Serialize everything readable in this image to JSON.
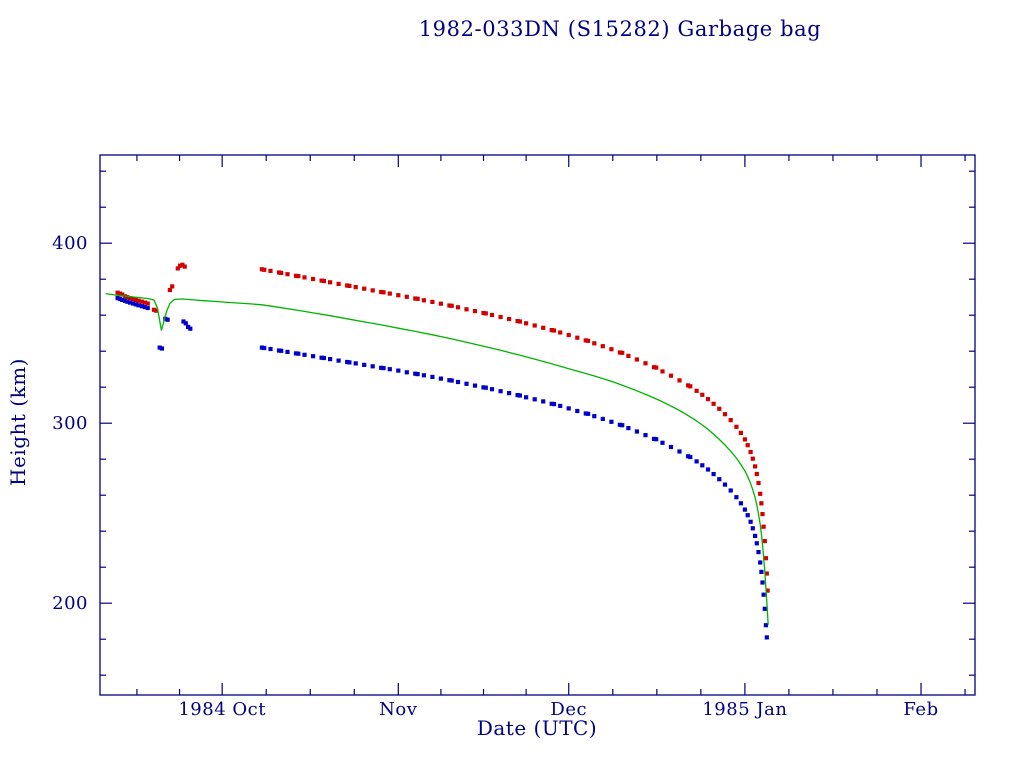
{
  "page": {
    "background": "#ffffff",
    "foreground": "#000080"
  },
  "chart_data": {
    "type": "scatter",
    "title": "1982-033DN (S15282) Garbage bag",
    "xlabel": "Date (UTC)",
    "ylabel": "Height (km)",
    "axis_color": "#000080",
    "grid": false,
    "legend": "none",
    "x_unit": "days since 1984-09-01 UTC",
    "xlim": [
      8.5,
      162.5
    ],
    "ylim": [
      149,
      449
    ],
    "x_ticks": [
      {
        "day": 30,
        "label": "1984 Oct"
      },
      {
        "day": 61,
        "label": "Nov"
      },
      {
        "day": 91,
        "label": "Dec"
      },
      {
        "day": 122,
        "label": "1985 Jan"
      },
      {
        "day": 153,
        "label": "Feb"
      }
    ],
    "x_minor_days": [
      15,
      22.5,
      37.75,
      45.5,
      53.25,
      68.5,
      76,
      83.5,
      98.75,
      106.5,
      114.25,
      129.75,
      137.5,
      145.25,
      160.75
    ],
    "y_ticks": [
      {
        "value": 200,
        "label": "200"
      },
      {
        "value": 300,
        "label": "300"
      },
      {
        "value": 400,
        "label": "400"
      }
    ],
    "y_minor_values": [
      160,
      180,
      220,
      240,
      260,
      280,
      320,
      340,
      360,
      380,
      420,
      440
    ],
    "series": [
      {
        "name": "apogee height",
        "type": "scatter",
        "marker": "square",
        "color": "#d40000",
        "points": [
          [
            11.6,
            372.5
          ],
          [
            12,
            372
          ],
          [
            12.4,
            371.5
          ],
          [
            12.9,
            370.5
          ],
          [
            13.3,
            370
          ],
          [
            13.8,
            369.5
          ],
          [
            14.3,
            369
          ],
          [
            14.8,
            368.5
          ],
          [
            15.3,
            368
          ],
          [
            15.9,
            367.5
          ],
          [
            16.4,
            367
          ],
          [
            16.9,
            366.5
          ],
          [
            18,
            363
          ],
          [
            18.4,
            362.5
          ],
          [
            20.8,
            374
          ],
          [
            21.2,
            376
          ],
          [
            22.2,
            386
          ],
          [
            22.6,
            387.5
          ],
          [
            23,
            388
          ],
          [
            23.4,
            387
          ],
          [
            37,
            385.5
          ],
          [
            37.4,
            385.2
          ],
          [
            38.5,
            384.6
          ],
          [
            40,
            383.7
          ],
          [
            40.4,
            383.5
          ],
          [
            41.5,
            382.8
          ],
          [
            43,
            381.9
          ],
          [
            43.4,
            381.7
          ],
          [
            44.5,
            381
          ],
          [
            46,
            380.1
          ],
          [
            47.5,
            379.2
          ],
          [
            47.9,
            379
          ],
          [
            49,
            378.3
          ],
          [
            50.5,
            377.4
          ],
          [
            52,
            376.5
          ],
          [
            52.4,
            376.3
          ],
          [
            53.5,
            375.6
          ],
          [
            55,
            374.7
          ],
          [
            56.5,
            373.8
          ],
          [
            58,
            372.9
          ],
          [
            58.4,
            372.7
          ],
          [
            59.5,
            372
          ],
          [
            61,
            371.1
          ],
          [
            62.5,
            370.2
          ],
          [
            64,
            369.3
          ],
          [
            64.4,
            369.1
          ],
          [
            65.5,
            368.3
          ],
          [
            67,
            367.4
          ],
          [
            68.5,
            366.4
          ],
          [
            70,
            365.4
          ],
          [
            70.4,
            365.2
          ],
          [
            71.5,
            364.4
          ],
          [
            73,
            363.3
          ],
          [
            74.5,
            362.3
          ],
          [
            76,
            361.2
          ],
          [
            76.4,
            361
          ],
          [
            77.5,
            360.1
          ],
          [
            79,
            359
          ],
          [
            80.5,
            357.9
          ],
          [
            82,
            356.7
          ],
          [
            82.4,
            356.5
          ],
          [
            83.5,
            355.5
          ],
          [
            85,
            354.3
          ],
          [
            86.5,
            353
          ],
          [
            88,
            351.7
          ],
          [
            88.4,
            351.5
          ],
          [
            89.5,
            350.4
          ],
          [
            91,
            349
          ],
          [
            92.5,
            347.5
          ],
          [
            94,
            346
          ],
          [
            94.4,
            345.8
          ],
          [
            95.5,
            344.4
          ],
          [
            97,
            342.8
          ],
          [
            98.5,
            341.1
          ],
          [
            100,
            339.3
          ],
          [
            100.4,
            339.1
          ],
          [
            101.5,
            337.4
          ],
          [
            103,
            335.4
          ],
          [
            104.5,
            333.3
          ],
          [
            106,
            331.1
          ],
          [
            106.4,
            330.9
          ],
          [
            107.5,
            328.8
          ],
          [
            109,
            326.4
          ],
          [
            110.5,
            323.8
          ],
          [
            112,
            321
          ],
          [
            112.4,
            320.5
          ],
          [
            113.5,
            318
          ],
          [
            114.5,
            315.8
          ],
          [
            115.5,
            313.4
          ],
          [
            116.5,
            310.8
          ],
          [
            117.5,
            308
          ],
          [
            118.5,
            305
          ],
          [
            119.5,
            301.7
          ],
          [
            120.5,
            298
          ],
          [
            121.3,
            294.6
          ],
          [
            122,
            291
          ],
          [
            122.5,
            287.8
          ],
          [
            123,
            284
          ],
          [
            123.4,
            280.3
          ],
          [
            123.8,
            276
          ],
          [
            124.1,
            271.8
          ],
          [
            124.4,
            266.8
          ],
          [
            124.7,
            260.8
          ],
          [
            124.9,
            255.5
          ],
          [
            125.1,
            249.5
          ],
          [
            125.3,
            242.5
          ],
          [
            125.5,
            234.5
          ],
          [
            125.7,
            225
          ],
          [
            125.85,
            216.5
          ],
          [
            126,
            207
          ]
        ]
      },
      {
        "name": "perigee height",
        "type": "scatter",
        "marker": "square",
        "color": "#0000cc",
        "points": [
          [
            11.6,
            369.5
          ],
          [
            12,
            369
          ],
          [
            12.4,
            368.5
          ],
          [
            12.9,
            368
          ],
          [
            13.3,
            367.5
          ],
          [
            13.8,
            367
          ],
          [
            14.3,
            366.5
          ],
          [
            14.8,
            366
          ],
          [
            15.3,
            365.5
          ],
          [
            15.9,
            365
          ],
          [
            16.4,
            364.5
          ],
          [
            16.9,
            364
          ],
          [
            19,
            342
          ],
          [
            19.4,
            341.5
          ],
          [
            20,
            358
          ],
          [
            20.4,
            357.5
          ],
          [
            23.2,
            356.5
          ],
          [
            23.6,
            355.5
          ],
          [
            24,
            353.5
          ],
          [
            24.4,
            352.5
          ],
          [
            37,
            342
          ],
          [
            37.4,
            341.8
          ],
          [
            38.5,
            341.2
          ],
          [
            40,
            340.4
          ],
          [
            40.4,
            340.2
          ],
          [
            41.5,
            339.6
          ],
          [
            43,
            338.8
          ],
          [
            43.4,
            338.6
          ],
          [
            44.5,
            338
          ],
          [
            46,
            337.2
          ],
          [
            47.5,
            336.4
          ],
          [
            47.9,
            336.2
          ],
          [
            49,
            335.6
          ],
          [
            50.5,
            334.8
          ],
          [
            52,
            334
          ],
          [
            52.4,
            333.8
          ],
          [
            53.5,
            333.2
          ],
          [
            55,
            332.4
          ],
          [
            56.5,
            331.6
          ],
          [
            58,
            330.8
          ],
          [
            58.4,
            330.6
          ],
          [
            59.5,
            330
          ],
          [
            61,
            329.2
          ],
          [
            62.5,
            328.3
          ],
          [
            64,
            327.5
          ],
          [
            64.4,
            327.3
          ],
          [
            65.5,
            326.6
          ],
          [
            67,
            325.7
          ],
          [
            68.5,
            324.8
          ],
          [
            70,
            323.9
          ],
          [
            70.4,
            323.7
          ],
          [
            71.5,
            322.9
          ],
          [
            73,
            321.9
          ],
          [
            74.5,
            320.9
          ],
          [
            76,
            319.9
          ],
          [
            76.4,
            319.7
          ],
          [
            77.5,
            318.9
          ],
          [
            79,
            317.8
          ],
          [
            80.5,
            316.7
          ],
          [
            82,
            315.6
          ],
          [
            82.4,
            315.4
          ],
          [
            83.5,
            314.4
          ],
          [
            85,
            313.3
          ],
          [
            86.5,
            312.1
          ],
          [
            88,
            310.8
          ],
          [
            88.4,
            310.6
          ],
          [
            89.5,
            309.6
          ],
          [
            91,
            308.2
          ],
          [
            92.5,
            306.8
          ],
          [
            94,
            305.4
          ],
          [
            94.4,
            305.2
          ],
          [
            95.5,
            303.9
          ],
          [
            97,
            302.4
          ],
          [
            98.5,
            300.8
          ],
          [
            100,
            299.1
          ],
          [
            100.4,
            298.9
          ],
          [
            101.5,
            297.3
          ],
          [
            103,
            295.4
          ],
          [
            104.5,
            293.4
          ],
          [
            106,
            291.3
          ],
          [
            106.4,
            291.1
          ],
          [
            107.5,
            289.1
          ],
          [
            109,
            286.8
          ],
          [
            110.5,
            284.3
          ],
          [
            112,
            281.6
          ],
          [
            112.4,
            281.2
          ],
          [
            113.5,
            278.8
          ],
          [
            114.5,
            276.6
          ],
          [
            115.5,
            274.3
          ],
          [
            116.5,
            271.7
          ],
          [
            117.5,
            268.9
          ],
          [
            118.5,
            265.9
          ],
          [
            119.5,
            262.6
          ],
          [
            120.5,
            258.9
          ],
          [
            121.3,
            255.5
          ],
          [
            122,
            252
          ],
          [
            122.5,
            248.9
          ],
          [
            123,
            245.2
          ],
          [
            123.4,
            241.6
          ],
          [
            123.8,
            237.4
          ],
          [
            124.1,
            233.3
          ],
          [
            124.4,
            228.4
          ],
          [
            124.7,
            222.6
          ],
          [
            124.9,
            217.4
          ],
          [
            125.1,
            211.5
          ],
          [
            125.3,
            204.7
          ],
          [
            125.5,
            196.9
          ],
          [
            125.7,
            187.8
          ],
          [
            125.85,
            181
          ]
        ]
      },
      {
        "name": "mean height",
        "type": "line",
        "color": "#00b300",
        "points": [
          [
            9.5,
            372
          ],
          [
            11,
            371.3
          ],
          [
            13,
            370.6
          ],
          [
            15,
            369.9
          ],
          [
            17,
            369.2
          ],
          [
            18,
            368.4
          ],
          [
            18.6,
            364
          ],
          [
            19,
            357
          ],
          [
            19.3,
            351.5
          ],
          [
            19.7,
            356
          ],
          [
            20.2,
            362
          ],
          [
            20.8,
            366.5
          ],
          [
            21.6,
            368.8
          ],
          [
            23,
            369
          ],
          [
            25,
            368.5
          ],
          [
            27,
            368
          ],
          [
            29,
            367.6
          ],
          [
            31,
            367.1
          ],
          [
            33,
            366.7
          ],
          [
            35,
            366.3
          ],
          [
            37,
            365.8
          ],
          [
            40,
            364.4
          ],
          [
            43,
            362.9
          ],
          [
            46,
            361.3
          ],
          [
            49,
            359.7
          ],
          [
            52,
            358
          ],
          [
            55,
            356.3
          ],
          [
            58,
            354.6
          ],
          [
            61,
            352.8
          ],
          [
            64,
            351
          ],
          [
            67,
            349.1
          ],
          [
            70,
            347.1
          ],
          [
            73,
            345
          ],
          [
            76,
            342.8
          ],
          [
            79,
            340.5
          ],
          [
            82,
            338.1
          ],
          [
            85,
            335.6
          ],
          [
            88,
            333
          ],
          [
            91,
            330.2
          ],
          [
            93,
            328.5
          ],
          [
            95,
            326.7
          ],
          [
            97,
            324.8
          ],
          [
            99,
            322.7
          ],
          [
            101,
            320.4
          ],
          [
            103,
            318
          ],
          [
            105,
            315.4
          ],
          [
            107,
            312.6
          ],
          [
            108.5,
            310.3
          ],
          [
            110,
            307.9
          ],
          [
            111.5,
            305.2
          ],
          [
            113,
            302.3
          ],
          [
            114.5,
            299
          ],
          [
            115.5,
            296.6
          ],
          [
            116.5,
            293.9
          ],
          [
            117.5,
            291
          ],
          [
            118.5,
            287.9
          ],
          [
            119.5,
            284.4
          ],
          [
            120.5,
            280.6
          ],
          [
            121.3,
            277
          ],
          [
            122,
            273.5
          ],
          [
            122.5,
            270.3
          ],
          [
            123,
            266.6
          ],
          [
            123.4,
            263
          ],
          [
            123.8,
            258.7
          ],
          [
            124.1,
            254.6
          ],
          [
            124.4,
            249.6
          ],
          [
            124.7,
            243.7
          ],
          [
            124.9,
            238.5
          ],
          [
            125.1,
            232.5
          ],
          [
            125.3,
            225.6
          ],
          [
            125.5,
            217.7
          ],
          [
            125.7,
            208.4
          ],
          [
            125.85,
            200.8
          ],
          [
            126,
            193.5
          ],
          [
            126.1,
            188
          ]
        ]
      }
    ]
  }
}
